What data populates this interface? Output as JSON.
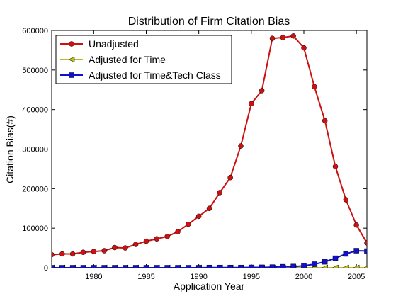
{
  "chart_data": {
    "type": "line",
    "title": "Distribution of Firm Citation Bias",
    "xlabel": "Application Year",
    "ylabel": "Citation Bias(#)",
    "xlim": [
      1976,
      2006
    ],
    "ylim": [
      0,
      600000
    ],
    "xticks": [
      1980,
      1985,
      1990,
      1995,
      2000,
      2005
    ],
    "xtick_labels": [
      "1980",
      "1985",
      "1990",
      "1995",
      "2000",
      "2005"
    ],
    "yticks": [
      0,
      100000,
      200000,
      300000,
      400000,
      500000,
      600000
    ],
    "ytick_labels": [
      "0",
      "100000",
      "200000",
      "300000",
      "400000",
      "500000",
      "600000"
    ],
    "grid": false,
    "legend_position": "top-left",
    "x": [
      1976,
      1977,
      1978,
      1979,
      1980,
      1981,
      1982,
      1983,
      1984,
      1985,
      1986,
      1987,
      1988,
      1989,
      1990,
      1991,
      1992,
      1993,
      1994,
      1995,
      1996,
      1997,
      1998,
      1999,
      2000,
      2001,
      2002,
      2003,
      2004,
      2005,
      2006
    ],
    "series": [
      {
        "name": "Unadjusted",
        "color": "#cc1111",
        "marker": "circle",
        "values": [
          33000,
          35000,
          35000,
          39000,
          41000,
          43000,
          51000,
          50000,
          59000,
          67000,
          73000,
          79000,
          91000,
          110000,
          130000,
          150000,
          190000,
          228000,
          308000,
          415000,
          448000,
          580000,
          582000,
          586000,
          556000,
          458000,
          372000,
          256000,
          172000,
          108000,
          63000
        ]
      },
      {
        "name": "Adjusted for Time",
        "color": "#bbbb22",
        "marker": "triangle-left",
        "values": [
          0,
          0,
          0,
          0,
          0,
          0,
          0,
          0,
          0,
          0,
          0,
          0,
          0,
          0,
          0,
          0,
          0,
          0,
          0,
          0,
          0,
          0,
          0,
          0,
          0,
          0,
          0,
          0,
          0,
          0,
          0
        ]
      },
      {
        "name": "Adjusted for Time&Tech Class",
        "color": "#1111cc",
        "marker": "square",
        "values": [
          0,
          0,
          0,
          0,
          0,
          0,
          0,
          0,
          0,
          0,
          0,
          0,
          0,
          0,
          0,
          500,
          500,
          500,
          500,
          800,
          1000,
          1500,
          2500,
          3000,
          5000,
          9000,
          15000,
          24000,
          35000,
          43000,
          42000
        ]
      }
    ]
  }
}
